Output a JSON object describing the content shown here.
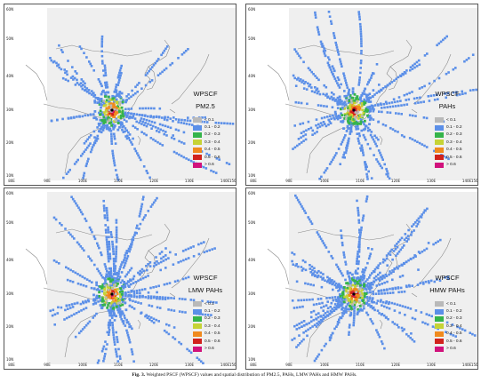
{
  "panels": [
    {
      "title1": "WPSCF",
      "title2": "PM2.5"
    },
    {
      "title1": "WPSCF",
      "title2": "PAHs"
    },
    {
      "title1": "WPSCF",
      "title2": "LMW PAHs"
    },
    {
      "title1": "WPSCF",
      "title2": "HMW PAHs"
    }
  ],
  "lat_labels": [
    "60N",
    "50N",
    "40N",
    "30N",
    "20N",
    "10N"
  ],
  "lon_labels": [
    "80E",
    "90E",
    "100E",
    "110E",
    "120E",
    "130E",
    "140E",
    "150E"
  ],
  "legend": [
    {
      "label": "< 0.1",
      "color": "#b9b9b9"
    },
    {
      "label": "0.1 - 0.2",
      "color": "#5b8fe8"
    },
    {
      "label": "0.2 - 0.3",
      "color": "#35b44a"
    },
    {
      "label": "0.3 - 0.4",
      "color": "#c6d335"
    },
    {
      "label": "0.4 - 0.5",
      "color": "#f08a1e"
    },
    {
      "label": "0.5 - 0.6",
      "color": "#d1231d"
    },
    {
      "label": "> 0.6",
      "color": "#d1127c"
    }
  ],
  "caption": {
    "label": "Fig. 3.",
    "text": "Weighted PSCF (WPSCF) values and spatial distribution of PM2.5, PAHs, LMW PAHs and HMW PAHs."
  },
  "colors": {
    "domain_shade": "#efefef",
    "coast": "#8a8a8a",
    "receptor": "#000000"
  }
}
